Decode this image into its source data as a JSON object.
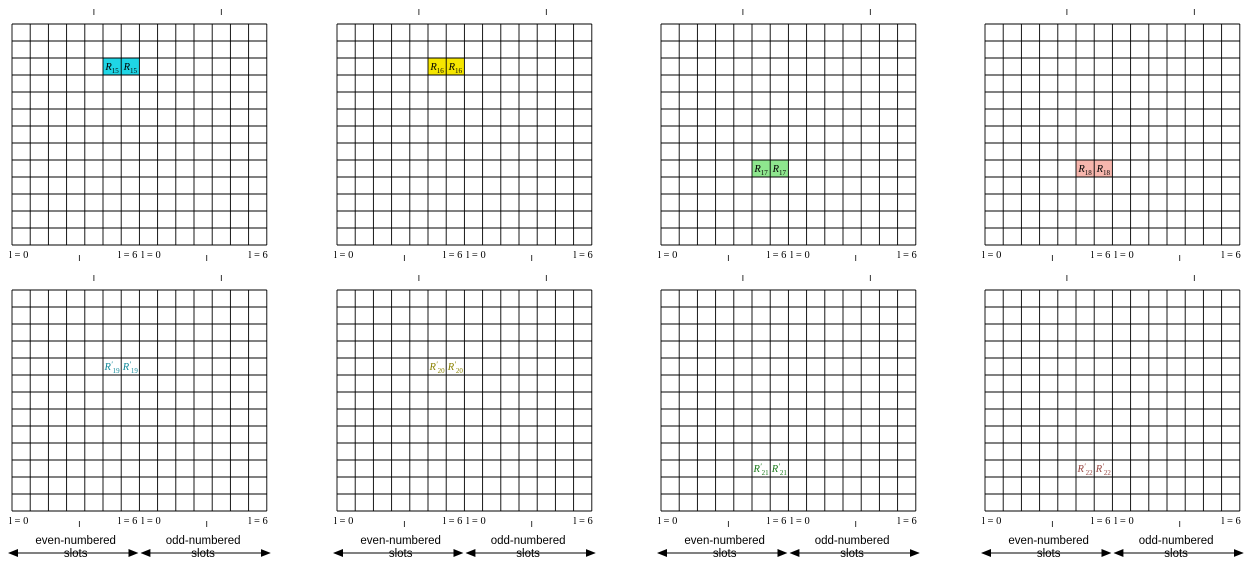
{
  "diagram": {
    "grid": {
      "rows": 13,
      "cols": 14
    },
    "axis_labels": {
      "left_start": "l = 0",
      "left_end": "l = 6",
      "right_start": "l = 0",
      "right_end": "l = 6"
    },
    "captions": {
      "even_line1": "even-numbered",
      "even_line2": "slots",
      "odd_line1": "odd-numbered",
      "odd_line2": "slots"
    },
    "panels": [
      {
        "id": "R15",
        "row": 0,
        "col": 0,
        "label_base": "R",
        "label_sub": "15",
        "prime": false,
        "cell_row": 2,
        "cell_cols": [
          5,
          6
        ],
        "fill": "#1fd6e6",
        "text_color": "#000000"
      },
      {
        "id": "R16",
        "row": 0,
        "col": 1,
        "label_base": "R",
        "label_sub": "16",
        "prime": false,
        "cell_row": 2,
        "cell_cols": [
          5,
          6
        ],
        "fill": "#f5e600",
        "text_color": "#000000"
      },
      {
        "id": "R17",
        "row": 0,
        "col": 2,
        "label_base": "R",
        "label_sub": "17",
        "prime": false,
        "cell_row": 8,
        "cell_cols": [
          5,
          6
        ],
        "fill": "#8ee68e",
        "text_color": "#000000"
      },
      {
        "id": "R18",
        "row": 0,
        "col": 3,
        "label_base": "R",
        "label_sub": "18",
        "prime": false,
        "cell_row": 8,
        "cell_cols": [
          5,
          6
        ],
        "fill": "#f7b6ad",
        "text_color": "#000000"
      },
      {
        "id": "R19p",
        "row": 1,
        "col": 0,
        "label_base": "R",
        "label_sub": "19",
        "prime": true,
        "cell_row": 4,
        "cell_cols": [
          5,
          6
        ],
        "fill": "none",
        "text_color": "#128a9a"
      },
      {
        "id": "R20p",
        "row": 1,
        "col": 1,
        "label_base": "R",
        "label_sub": "20",
        "prime": true,
        "cell_row": 4,
        "cell_cols": [
          5,
          6
        ],
        "fill": "none",
        "text_color": "#8a8200"
      },
      {
        "id": "R21p",
        "row": 1,
        "col": 2,
        "label_base": "R",
        "label_sub": "21",
        "prime": true,
        "cell_row": 10,
        "cell_cols": [
          5,
          6
        ],
        "fill": "none",
        "text_color": "#1a7a1a"
      },
      {
        "id": "R22p",
        "row": 1,
        "col": 3,
        "label_base": "R",
        "label_sub": "22",
        "prime": true,
        "cell_row": 10,
        "cell_cols": [
          5,
          6
        ],
        "fill": "none",
        "text_color": "#9a4a44"
      }
    ],
    "captions_on_row": 1
  }
}
